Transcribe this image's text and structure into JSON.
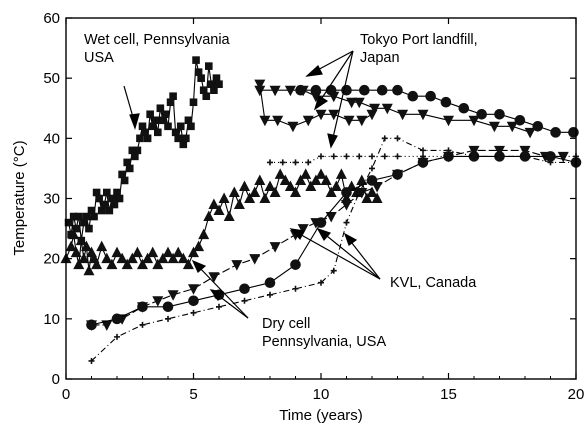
{
  "chart_data": {
    "type": "scatter",
    "xlabel": "Time (years)",
    "ylabel": "Temperature (°C)",
    "xlim": [
      0,
      20
    ],
    "ylim": [
      0,
      60
    ],
    "xticks": [
      "0",
      "5",
      "10",
      "15",
      "20"
    ],
    "yticks": [
      "0",
      "10",
      "20",
      "30",
      "40",
      "50",
      "60"
    ],
    "grid": false,
    "annotations": [
      {
        "lines": [
          "Wet cell, Pennsylvania",
          "USA"
        ]
      },
      {
        "lines": [
          "Tokyo Port landfill,",
          "Japan"
        ]
      },
      {
        "lines": [
          "KVL, Canada"
        ]
      },
      {
        "lines": [
          "Dry cell",
          "Pennsylvania, USA"
        ]
      }
    ],
    "series": [
      {
        "marker": "square",
        "x": [
          0.1,
          0.2,
          0.3,
          0.4,
          0.5,
          0.6,
          0.7,
          0.8,
          0.9,
          1.0,
          1.1,
          1.2,
          1.3,
          1.4,
          1.5,
          1.6,
          1.7,
          1.8,
          1.9,
          2.0,
          2.1,
          2.2,
          2.3,
          2.4,
          2.5,
          2.6,
          2.7,
          2.8,
          2.9,
          3.0,
          3.1,
          3.2,
          3.3,
          3.4,
          3.5,
          3.6,
          3.7,
          3.8,
          3.9,
          4.0,
          4.1,
          4.2,
          4.3,
          4.4,
          4.5,
          4.6,
          4.7,
          4.8,
          4.9,
          5.0,
          5.1,
          5.2,
          5.3,
          5.4,
          5.5,
          5.6,
          5.7,
          5.8,
          5.9,
          6.0
        ],
        "y": [
          26,
          24,
          27,
          25,
          27,
          23,
          26,
          27,
          25,
          28,
          27,
          31,
          30,
          28,
          29,
          31,
          28,
          30,
          29,
          31,
          30,
          34,
          33,
          36,
          35,
          38,
          37,
          38,
          40,
          42,
          41,
          40,
          44,
          42,
          43,
          41,
          45,
          43,
          44,
          42,
          46,
          47,
          41,
          40,
          42,
          39,
          40,
          43,
          42,
          46,
          53,
          51,
          50,
          48,
          47,
          52,
          49,
          48,
          50,
          49
        ]
      },
      {
        "marker": "triangle-up",
        "x": [
          0,
          0.2,
          0.3,
          0.4,
          0.5,
          0.6,
          0.7,
          0.8,
          0.9,
          1.0,
          1.1,
          1.2,
          1.4,
          1.6,
          1.8,
          2.0,
          2.2,
          2.4,
          2.6,
          2.8,
          3.0,
          3.2,
          3.4,
          3.6,
          3.8,
          4.0,
          4.2,
          4.4,
          4.6,
          4.8,
          5.0,
          5.2,
          5.4,
          5.6,
          5.8,
          6.0,
          6.2,
          6.4,
          6.6,
          6.8,
          7.0,
          7.2,
          7.4,
          7.6,
          7.8,
          8.0,
          8.2,
          8.4,
          8.6,
          8.8,
          9.0,
          9.2,
          9.4,
          9.6,
          9.8,
          10.0,
          10.2,
          10.4,
          10.6,
          10.8,
          11.0,
          11.2,
          11.4,
          11.6,
          11.8,
          12.0,
          12.2
        ],
        "y": [
          20,
          22,
          24,
          21,
          19,
          23,
          20,
          22,
          18,
          21,
          20,
          19,
          22,
          20,
          19,
          21,
          20,
          19,
          20,
          21,
          19,
          20,
          21,
          19,
          20,
          21,
          20,
          21,
          20,
          19,
          21,
          22,
          24,
          27,
          29,
          28,
          30,
          27,
          31,
          29,
          32,
          30,
          31,
          33,
          30,
          32,
          31,
          34,
          33,
          32,
          31,
          33,
          34,
          32,
          33,
          34,
          33,
          31,
          32,
          34,
          30,
          32,
          31,
          33,
          30,
          31,
          30
        ]
      },
      {
        "marker": "triangle-down",
        "x": [
          7.6,
          8.2,
          8.8,
          9.3,
          9.8,
          10.5,
          11.2,
          11.5,
          12.1,
          12.6,
          13.2,
          14.0,
          15.0,
          16.0,
          16.8,
          17.5,
          18.2
        ],
        "y": [
          48,
          48,
          48,
          48,
          47,
          47,
          46,
          46,
          45,
          45,
          44,
          44,
          43,
          43,
          42,
          42,
          41
        ]
      },
      {
        "marker": "triangle-down",
        "x": [
          7.6,
          7.8,
          8.3,
          8.9,
          9.5,
          10.0,
          10.5,
          11.1,
          11.6,
          12.0
        ],
        "y": [
          49,
          43,
          43,
          42,
          43,
          44,
          44,
          43,
          43,
          44
        ]
      },
      {
        "marker": "circle",
        "x": [
          9.2,
          9.8,
          10.4,
          11.0,
          11.7,
          12.4,
          13.0,
          13.6,
          14.3,
          14.9,
          15.6,
          16.3,
          17.0,
          17.8,
          18.5,
          19.2,
          19.9
        ],
        "y": [
          48,
          48,
          48,
          48,
          48,
          48,
          48,
          47,
          47,
          46,
          45,
          44,
          44,
          43,
          42,
          41,
          41
        ]
      },
      {
        "marker": "triangle-down",
        "x": [
          1,
          1.6,
          2.2,
          3.0,
          3.6,
          4.2,
          5.0,
          5.8,
          6.7,
          7.4,
          8.2,
          9.0,
          9.3,
          9.8,
          10.4,
          11.0,
          11.6,
          12.2,
          13.0,
          14.0,
          15.0,
          16.0,
          17.0,
          18.0,
          18.8,
          19.5
        ],
        "y": [
          9,
          9,
          10,
          12,
          13,
          14,
          15,
          17,
          19,
          20,
          22,
          24,
          25,
          26,
          27,
          29,
          31,
          32,
          34,
          36,
          37,
          38,
          38,
          38,
          37,
          37
        ]
      },
      {
        "marker": "circle",
        "x": [
          1,
          2,
          3,
          4,
          5,
          6,
          7,
          8,
          9,
          10,
          11,
          12,
          13,
          14,
          15,
          16,
          17,
          18,
          19,
          20
        ],
        "y": [
          9,
          10,
          12,
          12,
          13,
          14,
          15,
          16,
          19,
          26,
          31,
          33,
          34,
          36,
          37,
          37,
          37,
          37,
          37,
          36
        ]
      },
      {
        "marker": "plus",
        "x": [
          1,
          2,
          3,
          4,
          5,
          6,
          7,
          8,
          9,
          10,
          10.5,
          11,
          11.5,
          12,
          12.5,
          13,
          14,
          15,
          16,
          17,
          18,
          19,
          20
        ],
        "y": [
          3,
          7,
          9,
          10,
          11,
          12,
          13,
          14,
          15,
          16,
          18,
          26,
          31,
          35,
          40,
          40,
          38,
          38,
          37,
          37,
          37,
          36,
          36
        ]
      },
      {
        "marker": "plus",
        "x": [
          8,
          8.5,
          9,
          9.5,
          10,
          10.5,
          11,
          11.5,
          12,
          12.5,
          13,
          14,
          15,
          16,
          17,
          18,
          19,
          20
        ],
        "y": [
          36,
          36,
          36,
          36,
          37,
          37,
          37,
          37,
          37,
          37,
          37,
          37,
          37,
          37,
          37,
          37,
          37,
          37
        ]
      }
    ]
  }
}
